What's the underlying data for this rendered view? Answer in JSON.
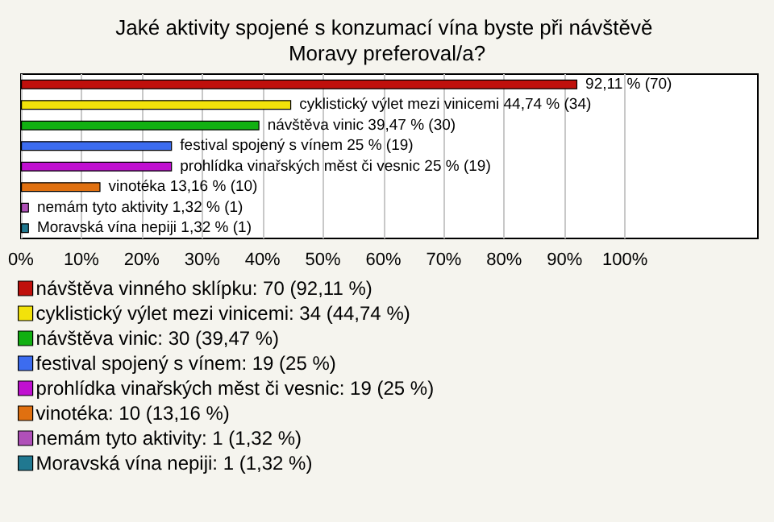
{
  "chart_data": {
    "type": "bar",
    "orientation": "horizontal",
    "stacked": true,
    "title": "Jaké aktivity spojené s konzumací vína byste při návštěvě Moravy preferoval/a?",
    "categories": [
      null,
      null,
      null,
      null,
      null,
      null,
      null,
      null
    ],
    "series": [
      {
        "name": "návštěva vinného sklípku: 70 (92,11 %)",
        "color": "#c0100c",
        "values": [
          92.11,
          null,
          null,
          null,
          null,
          null,
          null,
          null
        ],
        "value_labels": [
          "92,11 % (70)",
          null,
          null,
          null,
          null,
          null,
          null,
          null
        ]
      },
      {
        "name": "cyklistický výlet mezi vinicemi: 34 (44,74 %)",
        "color": "#f2e20a",
        "values": [
          null,
          44.74,
          null,
          null,
          null,
          null,
          null,
          null
        ],
        "value_labels": [
          null,
          "cyklistický výlet mezi vinicemi 44,74 % (34)",
          null,
          null,
          null,
          null,
          null,
          null
        ]
      },
      {
        "name": "návštěva vinic: 30 (39,47 %)",
        "color": "#12b012",
        "values": [
          null,
          null,
          39.47,
          null,
          null,
          null,
          null,
          null
        ],
        "value_labels": [
          null,
          null,
          "návštěva vinic 39,47 % (30)",
          null,
          null,
          null,
          null,
          null
        ]
      },
      {
        "name": "festival spojený s vínem: 19 (25 %)",
        "color": "#3c6cf0",
        "values": [
          null,
          null,
          null,
          25,
          null,
          null,
          null,
          null
        ],
        "value_labels": [
          null,
          null,
          null,
          "festival spojený s vínem 25 % (19)",
          null,
          null,
          null,
          null
        ]
      },
      {
        "name": "prohlídka vinařských měst či vesnic: 19 (25 %)",
        "color": "#c010d0",
        "values": [
          null,
          null,
          null,
          null,
          25,
          null,
          null,
          null
        ],
        "value_labels": [
          null,
          null,
          null,
          null,
          "prohlídka vinařských měst či vesnic 25 % (19)",
          null,
          null,
          null
        ]
      },
      {
        "name": "vinotéka: 10 (13,16 %)",
        "color": "#e07010",
        "values": [
          null,
          null,
          null,
          null,
          null,
          13.16,
          null,
          null
        ],
        "value_labels": [
          null,
          null,
          null,
          null,
          null,
          "vinotéka 13,16 % (10)",
          null,
          null
        ]
      },
      {
        "name": "nemám tyto aktivity: 1 (1,32 %)",
        "color": "#b050b8",
        "values": [
          null,
          null,
          null,
          null,
          null,
          null,
          1.32,
          null
        ],
        "value_labels": [
          null,
          null,
          null,
          null,
          null,
          null,
          "nemám tyto aktivity 1,32 % (1)",
          null
        ]
      },
      {
        "name": "Moravská vína nepiji: 1 (1,32 %)",
        "color": "#207890",
        "values": [
          null,
          null,
          null,
          null,
          null,
          null,
          null,
          1.32
        ],
        "value_labels": [
          null,
          null,
          null,
          null,
          null,
          null,
          null,
          "Moravská vína nepiji 1,32 % (1)"
        ]
      }
    ],
    "xlim": [
      0,
      122
    ],
    "xticks": [
      {
        "value": 0,
        "label": "0%"
      },
      {
        "value": 10,
        "label": "10%"
      },
      {
        "value": 20,
        "label": "20%"
      },
      {
        "value": 30,
        "label": "30%"
      },
      {
        "value": 40,
        "label": "40%"
      },
      {
        "value": 50,
        "label": "50%"
      },
      {
        "value": 60,
        "label": "60%"
      },
      {
        "value": 70,
        "label": "70%"
      },
      {
        "value": 80,
        "label": "80%"
      },
      {
        "value": 90,
        "label": "90%"
      },
      {
        "value": 100,
        "label": "100%"
      }
    ],
    "grid": "x",
    "legend": "bottom"
  }
}
